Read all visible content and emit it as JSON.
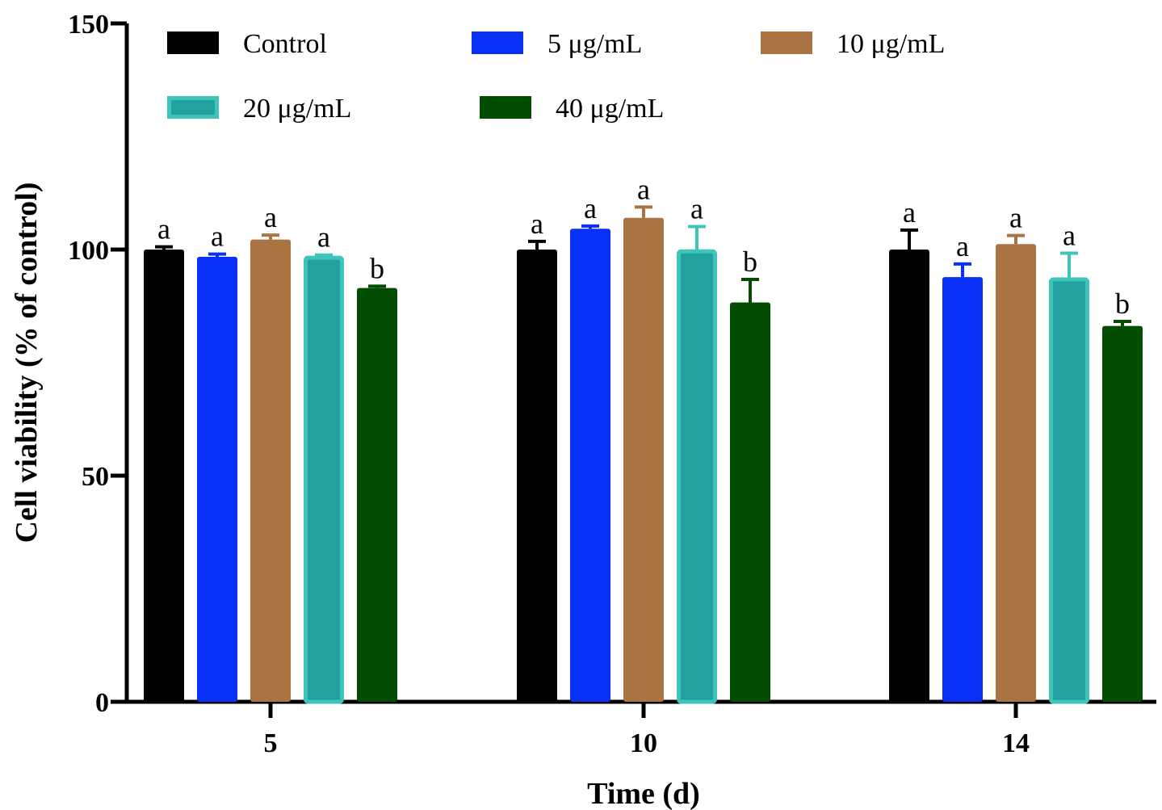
{
  "chart_data": {
    "type": "bar",
    "title": "",
    "xlabel": "Time (d)",
    "ylabel": "Cell viability (% of control)",
    "ylim": [
      0,
      150
    ],
    "yticks": [
      0,
      50,
      100,
      150
    ],
    "categories": [
      "5",
      "10",
      "14"
    ],
    "grid": false,
    "legend_position": "top",
    "series": [
      {
        "name": "Control",
        "color": "#000000",
        "values": [
          100,
          100,
          100
        ],
        "errors": [
          0.6,
          1.8,
          4.3
        ],
        "sig": [
          "a",
          "a",
          "a"
        ]
      },
      {
        "name": "5 μg/mL",
        "color": "#0a2ff5",
        "values": [
          98.4,
          104.6,
          93.9
        ],
        "errors": [
          0.6,
          0.6,
          2.9
        ],
        "sig": [
          "a",
          "a",
          "a"
        ]
      },
      {
        "name": "10 μg/mL",
        "color": "#a97442",
        "values": [
          102.2,
          107.0,
          101.2
        ],
        "errors": [
          1.0,
          2.4,
          1.9
        ],
        "sig": [
          "a",
          "a",
          "a"
        ]
      },
      {
        "name": "20 μg/mL",
        "color": "#23a1a1",
        "edge": "#3ec4b8",
        "values": [
          98.2,
          99.6,
          93.4
        ],
        "errors": [
          0.6,
          5.5,
          5.8
        ],
        "sig": [
          "a",
          "a",
          "a"
        ]
      },
      {
        "name": "40 μg/mL",
        "color": "#034d03",
        "values": [
          91.5,
          88.3,
          83.1
        ],
        "errors": [
          0.4,
          5.1,
          1.0
        ],
        "sig": [
          "b",
          "b",
          "b"
        ]
      }
    ]
  }
}
